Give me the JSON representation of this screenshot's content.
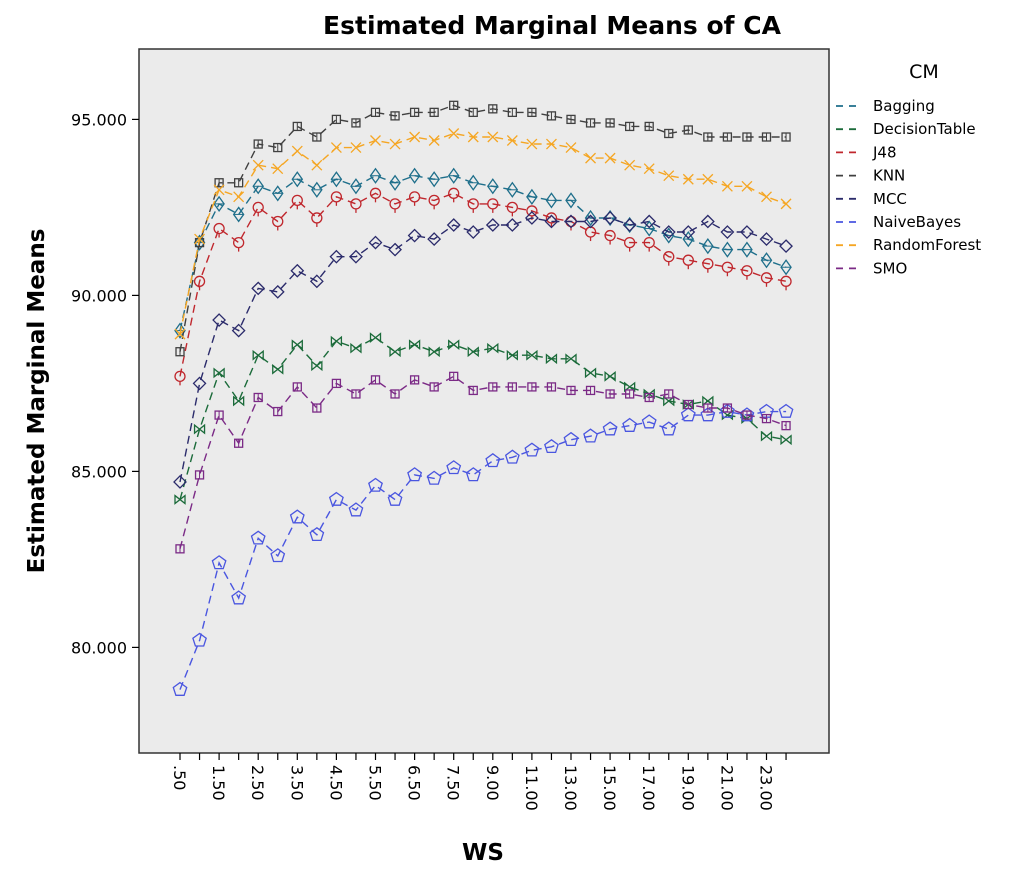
{
  "chart_data": {
    "type": "line",
    "title": "Estimated Marginal Means of CA",
    "xlabel": "WS",
    "ylabel": "Estimated Marginal Means",
    "legend_title": "CM",
    "legend_position": "right",
    "grid": false,
    "ylim": [
      77.0,
      97.0
    ],
    "y_ticks": [
      "80.000",
      "85.000",
      "90.000",
      "95.000"
    ],
    "x_tick_labels": [
      ".50",
      "1.50",
      "2.50",
      "3.50",
      "4.50",
      "5.50",
      "6.50",
      "7.50",
      "9.00",
      "11.00",
      "13.00",
      "15.00",
      "17.00",
      "19.00",
      "21.00",
      "23.00"
    ],
    "x": [
      0.5,
      1.0,
      1.5,
      2.0,
      2.5,
      3.0,
      3.5,
      4.0,
      4.5,
      5.0,
      5.5,
      6.0,
      6.5,
      7.0,
      7.5,
      8.0,
      9.0,
      10.0,
      11.0,
      12.0,
      13.0,
      14.0,
      15.0,
      16.0,
      17.0,
      18.0,
      19.0,
      20.0,
      21.0,
      22.0,
      23.0,
      24.0
    ],
    "series": [
      {
        "name": "Bagging",
        "color": "#1f6f8b",
        "marker": "diamond-tick",
        "values": [
          89.0,
          91.5,
          92.6,
          92.3,
          93.1,
          92.9,
          93.3,
          93.0,
          93.3,
          93.1,
          93.4,
          93.2,
          93.4,
          93.3,
          93.4,
          93.2,
          93.1,
          93.0,
          92.8,
          92.7,
          92.7,
          92.2,
          92.2,
          92.0,
          91.9,
          91.7,
          91.6,
          91.4,
          91.3,
          91.3,
          91.0,
          90.8
        ]
      },
      {
        "name": "DecisionTable",
        "color": "#1b6b3a",
        "marker": "bowtie",
        "values": [
          84.2,
          86.2,
          87.8,
          87.0,
          88.3,
          87.9,
          88.6,
          88.0,
          88.7,
          88.5,
          88.8,
          88.4,
          88.6,
          88.4,
          88.6,
          88.4,
          88.5,
          88.3,
          88.3,
          88.2,
          88.2,
          87.8,
          87.7,
          87.4,
          87.2,
          87.0,
          86.9,
          87.0,
          86.6,
          86.5,
          86.0,
          85.9
        ]
      },
      {
        "name": "J48",
        "color": "#c0272d",
        "marker": "circle-tick",
        "values": [
          87.7,
          90.4,
          91.9,
          91.5,
          92.5,
          92.1,
          92.7,
          92.2,
          92.8,
          92.6,
          92.9,
          92.6,
          92.8,
          92.7,
          92.9,
          92.6,
          92.6,
          92.5,
          92.4,
          92.2,
          92.1,
          91.8,
          91.7,
          91.5,
          91.5,
          91.1,
          91.0,
          90.9,
          90.8,
          90.7,
          90.5,
          90.4
        ]
      },
      {
        "name": "KNN",
        "color": "#404040",
        "marker": "square-tick",
        "values": [
          88.4,
          91.5,
          93.2,
          93.2,
          94.3,
          94.2,
          94.8,
          94.5,
          95.0,
          94.9,
          95.2,
          95.1,
          95.2,
          95.2,
          95.4,
          95.2,
          95.3,
          95.2,
          95.2,
          95.1,
          95.0,
          94.9,
          94.9,
          94.8,
          94.8,
          94.6,
          94.7,
          94.5,
          94.5,
          94.5,
          94.5,
          94.5
        ]
      },
      {
        "name": "MCC",
        "color": "#2b2b6b",
        "marker": "diamond",
        "values": [
          84.7,
          87.5,
          89.3,
          89.0,
          90.2,
          90.1,
          90.7,
          90.4,
          91.1,
          91.1,
          91.5,
          91.3,
          91.7,
          91.6,
          92.0,
          91.8,
          92.0,
          92.0,
          92.2,
          92.1,
          92.1,
          92.1,
          92.2,
          92.0,
          92.1,
          91.8,
          91.8,
          92.1,
          91.8,
          91.8,
          91.6,
          91.4
        ]
      },
      {
        "name": "NaiveBayes",
        "color": "#4a56e0",
        "marker": "pentagon",
        "values": [
          78.8,
          80.2,
          82.4,
          81.4,
          83.1,
          82.6,
          83.7,
          83.2,
          84.2,
          83.9,
          84.6,
          84.2,
          84.9,
          84.8,
          85.1,
          84.9,
          85.3,
          85.4,
          85.6,
          85.7,
          85.9,
          86.0,
          86.2,
          86.3,
          86.4,
          86.2,
          86.6,
          86.6,
          86.7,
          86.6,
          86.7,
          86.7
        ]
      },
      {
        "name": "RandomForest",
        "color": "#f5a623",
        "marker": "x",
        "values": [
          88.9,
          91.6,
          93.0,
          92.8,
          93.7,
          93.6,
          94.1,
          93.7,
          94.2,
          94.2,
          94.4,
          94.3,
          94.5,
          94.4,
          94.6,
          94.5,
          94.5,
          94.4,
          94.3,
          94.3,
          94.2,
          93.9,
          93.9,
          93.7,
          93.6,
          93.4,
          93.3,
          93.3,
          93.1,
          93.1,
          92.8,
          92.6
        ]
      },
      {
        "name": "SMO",
        "color": "#7b2a86",
        "marker": "square-tick",
        "values": [
          82.8,
          84.9,
          86.6,
          85.8,
          87.1,
          86.7,
          87.4,
          86.8,
          87.5,
          87.2,
          87.6,
          87.2,
          87.6,
          87.4,
          87.7,
          87.3,
          87.4,
          87.4,
          87.4,
          87.4,
          87.3,
          87.3,
          87.2,
          87.2,
          87.1,
          87.2,
          86.9,
          86.8,
          86.8,
          86.6,
          86.5,
          86.3
        ]
      }
    ]
  }
}
